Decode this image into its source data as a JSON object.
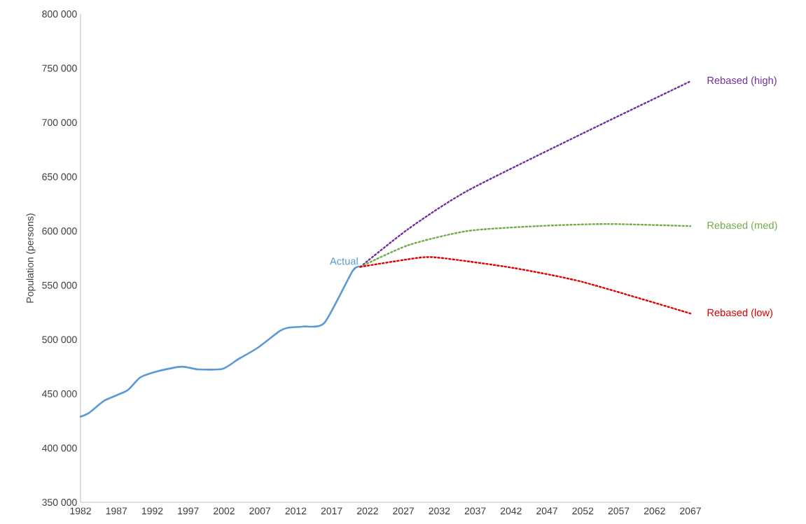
{
  "chart_data": {
    "type": "line",
    "ylabel": "Population (persons)",
    "legend": false,
    "grid": false,
    "xlim": [
      1982,
      2067
    ],
    "ylim": [
      350000,
      800000
    ],
    "xticks": [
      1982,
      1987,
      1992,
      1997,
      2002,
      2007,
      2012,
      2017,
      2022,
      2027,
      2032,
      2037,
      2042,
      2047,
      2052,
      2057,
      2062,
      2067
    ],
    "yticks": [
      {
        "value": 350000,
        "label": "350 000"
      },
      {
        "value": 400000,
        "label": "400 000"
      },
      {
        "value": 450000,
        "label": "450 000"
      },
      {
        "value": 500000,
        "label": "500 000"
      },
      {
        "value": 550000,
        "label": "550 000"
      },
      {
        "value": 600000,
        "label": "600 000"
      },
      {
        "value": 650000,
        "label": "650 000"
      },
      {
        "value": 700000,
        "label": "700 000"
      },
      {
        "value": 750000,
        "label": "750 000"
      },
      {
        "value": 800000,
        "label": "800 000"
      }
    ],
    "series": [
      {
        "name": "Actual",
        "color": "#5b9bd5",
        "line_style": "solid",
        "x": [
          1982,
          1983.2,
          1985.4,
          1988.5,
          1990.3,
          1992.9,
          1996.1,
          1998.4,
          2001.8,
          2004,
          2006.6,
          2009.8,
          2011,
          2013,
          2016,
          2019.9,
          2021
        ],
        "values": [
          429000,
          432500,
          444000,
          453000,
          465000,
          471000,
          475000,
          472500,
          473000,
          482000,
          492000,
          508000,
          511000,
          512000,
          515500,
          563000,
          567000
        ]
      },
      {
        "name": "Rebased (high)",
        "color": "#7030a0",
        "line_style": "dotted",
        "x": [
          2021,
          2027.7,
          2035.9,
          2052,
          2067
        ],
        "values": [
          567000,
          602000,
          637000,
          690000,
          738000
        ]
      },
      {
        "name": "Rebased (med)",
        "color": "#70ad47",
        "line_style": "dotted",
        "x": [
          2021,
          2027.7,
          2035.9,
          2045.6,
          2055.4,
          2067
        ],
        "values": [
          567000,
          587000,
          600000,
          604500,
          606500,
          604500
        ]
      },
      {
        "name": "Rebased (low)",
        "color": "#e00000",
        "line_style": "dotted",
        "x": [
          2021,
          2029.3,
          2032.5,
          2042.3,
          2052,
          2067
        ],
        "values": [
          567000,
          575500,
          575000,
          566000,
          553000,
          524000
        ]
      }
    ]
  }
}
